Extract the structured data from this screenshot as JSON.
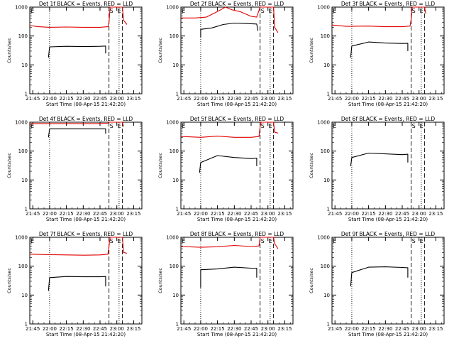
{
  "figure": {
    "xlabel": "Start Time (08-Apr-15 21:42:20)",
    "ylabel": "Counts/sec",
    "x_ticks": [
      "21:45",
      "22:00",
      "22:15",
      "22:30",
      "22:45",
      "23:00",
      "23:15"
    ],
    "y_ticks": [
      "1",
      "10",
      "100",
      "1000"
    ],
    "marker_labels": [
      "S",
      "E"
    ],
    "colors": {
      "events": "#000000",
      "lld": "#e00000",
      "axes": "#000000"
    }
  },
  "chart_data": [
    {
      "type": "line",
      "title": "Det 1f BLACK = Events, RED = LLD",
      "yscale": "log",
      "ylim": [
        1,
        1000
      ],
      "series": [
        {
          "name": "Events",
          "color": "#000000",
          "points": [
            [
              "21:59",
              18
            ],
            [
              "22:00",
              42
            ],
            [
              "22:15",
              44
            ],
            [
              "22:30",
              43
            ],
            [
              "22:45",
              44
            ],
            [
              "22:50",
              45
            ],
            [
              "22:50",
              25
            ]
          ]
        },
        {
          "name": "LLD",
          "color": "#e00000",
          "points": [
            [
              "21:42:20",
              230
            ],
            [
              "21:50",
              210
            ],
            [
              "22:00",
              200
            ],
            [
              "22:15",
              205
            ],
            [
              "22:30",
              200
            ],
            [
              "22:45",
              200
            ],
            [
              "22:52",
              210
            ],
            [
              "22:53",
              300
            ],
            [
              "22:54",
              1000
            ],
            [
              "23:05",
              1000
            ],
            [
              "23:06",
              350
            ],
            [
              "23:09",
              250
            ]
          ]
        }
      ]
    },
    {
      "type": "line",
      "title": "Det 2f BLACK = Events, RED = LLD",
      "yscale": "log",
      "ylim": [
        1,
        1000
      ],
      "series": [
        {
          "name": "Events",
          "color": "#000000",
          "points": [
            [
              "22:00",
              90
            ],
            [
              "22:00",
              170
            ],
            [
              "22:10",
              190
            ],
            [
              "22:20",
              250
            ],
            [
              "22:30",
              280
            ],
            [
              "22:40",
              270
            ],
            [
              "22:50",
              260
            ],
            [
              "22:51",
              150
            ]
          ]
        },
        {
          "name": "LLD",
          "color": "#e00000",
          "points": [
            [
              "21:42:20",
              420
            ],
            [
              "21:55",
              420
            ],
            [
              "22:05",
              450
            ],
            [
              "22:15",
              700
            ],
            [
              "22:22",
              1000
            ],
            [
              "22:28",
              800
            ],
            [
              "22:35",
              700
            ],
            [
              "22:45",
              480
            ],
            [
              "22:50",
              450
            ],
            [
              "22:53",
              1000
            ],
            [
              "23:05",
              1000
            ],
            [
              "23:06",
              200
            ],
            [
              "23:09",
              130
            ]
          ]
        }
      ]
    },
    {
      "type": "line",
      "title": "Det 3f BLACK = Events, RED = LLD",
      "yscale": "log",
      "ylim": [
        1,
        1000
      ],
      "series": [
        {
          "name": "Events",
          "color": "#000000",
          "points": [
            [
              "21:59",
              18
            ],
            [
              "22:00",
              45
            ],
            [
              "22:15",
              62
            ],
            [
              "22:30",
              57
            ],
            [
              "22:45",
              55
            ],
            [
              "22:50",
              56
            ],
            [
              "22:50",
              30
            ]
          ]
        },
        {
          "name": "LLD",
          "color": "#e00000",
          "points": [
            [
              "21:42:20",
              240
            ],
            [
              "21:55",
              215
            ],
            [
              "22:15",
              220
            ],
            [
              "22:30",
              210
            ],
            [
              "22:45",
              210
            ],
            [
              "22:52",
              220
            ],
            [
              "22:53",
              400
            ],
            [
              "22:54",
              1000
            ],
            [
              "23:05",
              1000
            ],
            [
              "23:06",
              600
            ]
          ]
        }
      ]
    },
    {
      "type": "line",
      "title": "Det 4f BLACK = Events, RED = LLD",
      "yscale": "log",
      "ylim": [
        1,
        1000
      ],
      "series": [
        {
          "name": "Events",
          "color": "#000000",
          "points": [
            [
              "21:59",
              300
            ],
            [
              "22:00",
              590
            ],
            [
              "22:15",
              590
            ],
            [
              "22:30",
              590
            ],
            [
              "22:45",
              590
            ],
            [
              "22:50",
              590
            ],
            [
              "22:50",
              400
            ]
          ]
        },
        {
          "name": "LLD",
          "color": "#e00000",
          "points": [
            [
              "21:42:20",
              900
            ],
            [
              "22:00",
              900
            ],
            [
              "22:15",
              900
            ],
            [
              "22:30",
              900
            ],
            [
              "22:45",
              900
            ],
            [
              "22:52",
              920
            ],
            [
              "22:53",
              1000
            ],
            [
              "23:05",
              1000
            ],
            [
              "23:06",
              700
            ]
          ]
        }
      ]
    },
    {
      "type": "line",
      "title": "Det 5f BLACK = Events, RED = LLD",
      "yscale": "log",
      "ylim": [
        1,
        1000
      ],
      "series": [
        {
          "name": "Events",
          "color": "#000000",
          "points": [
            [
              "21:59",
              18
            ],
            [
              "22:00",
              40
            ],
            [
              "22:15",
              70
            ],
            [
              "22:30",
              60
            ],
            [
              "22:45",
              55
            ],
            [
              "22:50",
              57
            ],
            [
              "22:50",
              30
            ]
          ]
        },
        {
          "name": "LLD",
          "color": "#e00000",
          "points": [
            [
              "21:42:20",
              320
            ],
            [
              "22:00",
              300
            ],
            [
              "22:15",
              330
            ],
            [
              "22:30",
              300
            ],
            [
              "22:45",
              300
            ],
            [
              "22:52",
              320
            ],
            [
              "22:53",
              700
            ],
            [
              "22:54",
              1000
            ],
            [
              "23:05",
              1000
            ],
            [
              "23:06",
              450
            ],
            [
              "23:09",
              420
            ]
          ]
        }
      ]
    },
    {
      "type": "line",
      "title": "Det 6f BLACK = Events, RED = LLD",
      "yscale": "log",
      "ylim": [
        1,
        1000
      ],
      "series": [
        {
          "name": "Events",
          "color": "#000000",
          "points": [
            [
              "21:59",
              30
            ],
            [
              "22:00",
              60
            ],
            [
              "22:15",
              85
            ],
            [
              "22:30",
              80
            ],
            [
              "22:45",
              75
            ],
            [
              "22:50",
              78
            ],
            [
              "22:50",
              40
            ]
          ]
        }
      ]
    },
    {
      "type": "line",
      "title": "Det 7f BLACK = Events, RED = LLD",
      "yscale": "log",
      "ylim": [
        1,
        1000
      ],
      "series": [
        {
          "name": "Events",
          "color": "#000000",
          "points": [
            [
              "21:59",
              14
            ],
            [
              "22:00",
              40
            ],
            [
              "22:15",
              44
            ],
            [
              "22:30",
              43
            ],
            [
              "22:45",
              43
            ],
            [
              "22:50",
              44
            ],
            [
              "22:50",
              20
            ]
          ]
        },
        {
          "name": "LLD",
          "color": "#e00000",
          "points": [
            [
              "21:42:20",
              260
            ],
            [
              "22:00",
              250
            ],
            [
              "22:15",
              245
            ],
            [
              "22:30",
              240
            ],
            [
              "22:45",
              245
            ],
            [
              "22:52",
              260
            ],
            [
              "22:53",
              500
            ],
            [
              "22:54",
              1000
            ],
            [
              "23:05",
              1000
            ],
            [
              "23:06",
              300
            ],
            [
              "23:09",
              280
            ]
          ]
        }
      ]
    },
    {
      "type": "line",
      "title": "Det 8f BLACK = Events, RED = LLD",
      "yscale": "log",
      "ylim": [
        1,
        1000
      ],
      "series": [
        {
          "name": "Events",
          "color": "#000000",
          "points": [
            [
              "22:00",
              18
            ],
            [
              "22:00",
              75
            ],
            [
              "22:15",
              80
            ],
            [
              "22:30",
              92
            ],
            [
              "22:45",
              85
            ],
            [
              "22:50",
              85
            ],
            [
              "22:50",
              40
            ]
          ]
        },
        {
          "name": "LLD",
          "color": "#e00000",
          "points": [
            [
              "21:42:20",
              480
            ],
            [
              "22:00",
              450
            ],
            [
              "22:15",
              470
            ],
            [
              "22:30",
              520
            ],
            [
              "22:45",
              480
            ],
            [
              "22:52",
              500
            ],
            [
              "22:53",
              1000
            ],
            [
              "23:05",
              1000
            ],
            [
              "23:06",
              600
            ],
            [
              "23:09",
              400
            ]
          ]
        }
      ]
    },
    {
      "type": "line",
      "title": "Det 9f BLACK = Events, RED = LLD",
      "yscale": "log",
      "ylim": [
        1,
        1000
      ],
      "series": [
        {
          "name": "Events",
          "color": "#000000",
          "points": [
            [
              "21:59",
              20
            ],
            [
              "22:00",
              60
            ],
            [
              "22:15",
              92
            ],
            [
              "22:30",
              95
            ],
            [
              "22:45",
              90
            ],
            [
              "22:50",
              88
            ],
            [
              "22:50",
              40
            ]
          ]
        }
      ]
    }
  ]
}
